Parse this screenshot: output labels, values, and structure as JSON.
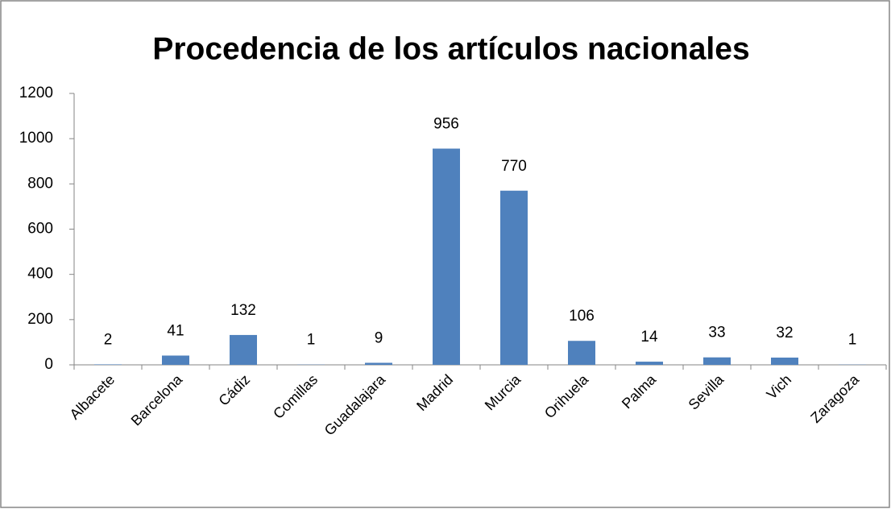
{
  "chart_data": {
    "type": "bar",
    "title": "Procedencia de los artículos nacionales",
    "categories": [
      "Albacete",
      "Barcelona",
      "Cádiz",
      "Comillas",
      "Guadalajara",
      "Madrid",
      "Murcia",
      "Orihuela",
      "Palma",
      "Sevilla",
      "Vich",
      "Zaragoza"
    ],
    "values": [
      2,
      41,
      132,
      1,
      9,
      956,
      770,
      106,
      14,
      33,
      32,
      1
    ],
    "color": "#4f81bd",
    "ylim": [
      0,
      1200
    ],
    "yticks": [
      0,
      200,
      400,
      600,
      800,
      1000,
      1200
    ],
    "grid": false
  }
}
